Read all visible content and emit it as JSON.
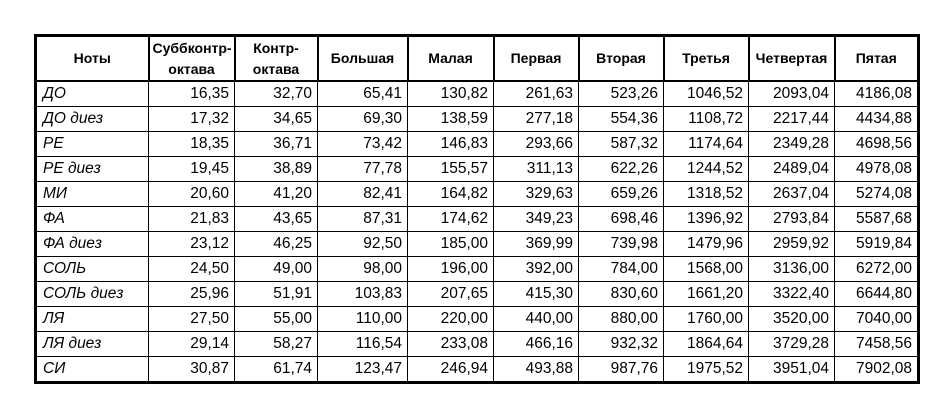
{
  "colors": {
    "background": "#ffffff",
    "border": "#000000",
    "text": "#000000"
  },
  "chart_data": {
    "type": "table",
    "title": "",
    "columns": [
      "Ноты",
      "Суббконтр-октава",
      "Контр-октава",
      "Большая",
      "Малая",
      "Первая",
      "Вторая",
      "Третья",
      "Четвертая",
      "Пятая"
    ],
    "rows": [
      {
        "note": "ДО",
        "values": [
          "16,35",
          "32,70",
          "65,41",
          "130,82",
          "261,63",
          "523,26",
          "1046,52",
          "2093,04",
          "4186,08"
        ]
      },
      {
        "note": "ДО диез",
        "values": [
          "17,32",
          "34,65",
          "69,30",
          "138,59",
          "277,18",
          "554,36",
          "1108,72",
          "2217,44",
          "4434,88"
        ]
      },
      {
        "note": "РЕ",
        "values": [
          "18,35",
          "36,71",
          "73,42",
          "146,83",
          "293,66",
          "587,32",
          "1174,64",
          "2349,28",
          "4698,56"
        ]
      },
      {
        "note": "РЕ диез",
        "values": [
          "19,45",
          "38,89",
          "77,78",
          "155,57",
          "311,13",
          "622,26",
          "1244,52",
          "2489,04",
          "4978,08"
        ]
      },
      {
        "note": "МИ",
        "values": [
          "20,60",
          "41,20",
          "82,41",
          "164,82",
          "329,63",
          "659,26",
          "1318,52",
          "2637,04",
          "5274,08"
        ]
      },
      {
        "note": "ФА",
        "values": [
          "21,83",
          "43,65",
          "87,31",
          "174,62",
          "349,23",
          "698,46",
          "1396,92",
          "2793,84",
          "5587,68"
        ]
      },
      {
        "note": "ФА диез",
        "values": [
          "23,12",
          "46,25",
          "92,50",
          "185,00",
          "369,99",
          "739,98",
          "1479,96",
          "2959,92",
          "5919,84"
        ]
      },
      {
        "note": "СОЛЬ",
        "values": [
          "24,50",
          "49,00",
          "98,00",
          "196,00",
          "392,00",
          "784,00",
          "1568,00",
          "3136,00",
          "6272,00"
        ]
      },
      {
        "note": "СОЛЬ диез",
        "values": [
          "25,96",
          "51,91",
          "103,83",
          "207,65",
          "415,30",
          "830,60",
          "1661,20",
          "3322,40",
          "6644,80"
        ]
      },
      {
        "note": "ЛЯ",
        "values": [
          "27,50",
          "55,00",
          "110,00",
          "220,00",
          "440,00",
          "880,00",
          "1760,00",
          "3520,00",
          "7040,00"
        ]
      },
      {
        "note": "ЛЯ диез",
        "values": [
          "29,14",
          "58,27",
          "116,54",
          "233,08",
          "466,16",
          "932,32",
          "1864,64",
          "3729,28",
          "7458,56"
        ]
      },
      {
        "note": "СИ",
        "values": [
          "30,87",
          "61,74",
          "123,47",
          "246,94",
          "493,88",
          "987,76",
          "1975,52",
          "3951,04",
          "7902,08"
        ]
      }
    ]
  }
}
